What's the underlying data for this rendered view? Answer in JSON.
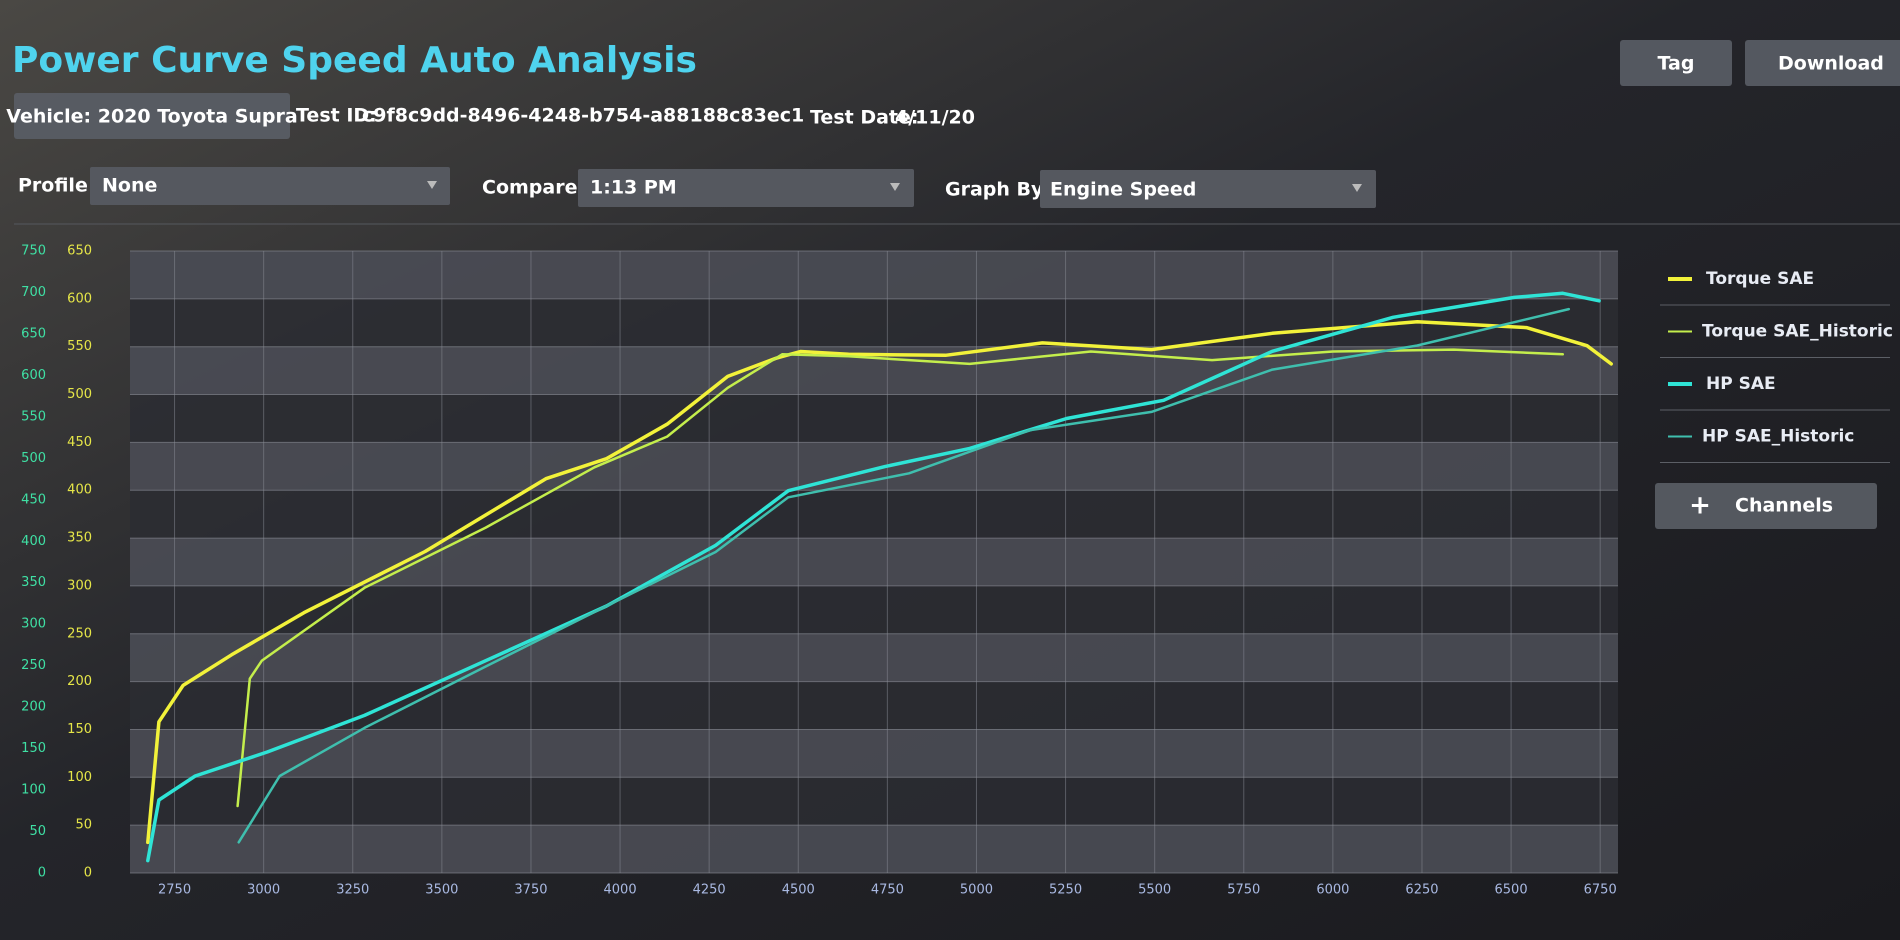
{
  "header": {
    "title": "Power Curve Speed Auto Analysis",
    "tag_button": "Tag",
    "download_button": "Download",
    "vehicle": "Vehicle: 2020 Toyota Supra",
    "test_id_label": "Test ID:",
    "test_id": "c9f8c9dd-8496-4248-b754-a88188c83ec1",
    "test_date_label": "Test Date:",
    "test_date": "4/11/20"
  },
  "filters": {
    "profile_label": "Profile",
    "profile": "None",
    "compare_label": "Compare",
    "compare": "1:13 PM",
    "graph_by_label": "Graph By",
    "graph_by": "Engine Speed"
  },
  "channels_button": "Channels",
  "chart_data": {
    "type": "line",
    "xlim": [
      2625,
      6800
    ],
    "xticks": [
      2750,
      3000,
      3250,
      3500,
      3750,
      4000,
      4250,
      4500,
      4750,
      5000,
      5250,
      5500,
      5750,
      6000,
      6250,
      6500,
      6750
    ],
    "ylim": [
      0,
      750
    ],
    "yticks": [
      0,
      50,
      100,
      150,
      200,
      250,
      300,
      350,
      400,
      450,
      500,
      550,
      600,
      650,
      700,
      750
    ],
    "y2lim": [
      0,
      650
    ],
    "y2ticks": [
      0,
      50,
      100,
      150,
      200,
      250,
      300,
      350,
      400,
      450,
      500,
      550,
      600,
      650
    ],
    "grid": true,
    "legend": "right",
    "series": [
      {
        "name": "Torque SAE",
        "color": "#f2f23a",
        "axis": "y2",
        "x": [
          2675,
          2706,
          2774,
          2910,
          3113,
          3453,
          3792,
          3962,
          4132,
          4302,
          4438,
          4506,
          4641,
          4913,
          5185,
          5491,
          5830,
          6237,
          6543,
          6713,
          6781
        ],
        "values": [
          32,
          158,
          196,
          228,
          272,
          336,
          412,
          433,
          469,
          519,
          538,
          545,
          542,
          541,
          554,
          547,
          564,
          576,
          570,
          551,
          532
        ]
      },
      {
        "name": "Torque SAE_Historic",
        "color": "#c4ee4c",
        "axis": "y2",
        "x": [
          2927,
          2961,
          2995,
          3283,
          3623,
          3928,
          4132,
          4302,
          4455,
          4641,
          4981,
          5321,
          5661,
          6000,
          6339,
          6645
        ],
        "values": [
          70,
          203,
          222,
          298,
          361,
          424,
          456,
          507,
          542,
          540,
          532,
          545,
          536,
          545,
          547,
          542
        ]
      },
      {
        "name": "HP SAE",
        "color": "#2fe4d6",
        "x": [
          2675,
          2706,
          2808,
          3011,
          3283,
          3623,
          3962,
          4268,
          4472,
          4743,
          4981,
          5253,
          5525,
          5830,
          6169,
          6509,
          6645,
          6747
        ],
        "values": [
          15,
          88,
          117,
          146,
          190,
          256,
          322,
          395,
          461,
          490,
          512,
          548,
          570,
          629,
          670,
          694,
          699,
          690
        ]
      },
      {
        "name": "HP SAE_Historic",
        "color": "#3fbfae",
        "x": [
          2930,
          3045,
          3283,
          3623,
          3962,
          4268,
          4472,
          4811,
          5151,
          5491,
          5830,
          6237,
          6662
        ],
        "values": [
          37,
          117,
          175,
          249,
          322,
          387,
          453,
          482,
          534,
          556,
          607,
          636,
          680
        ]
      }
    ]
  }
}
